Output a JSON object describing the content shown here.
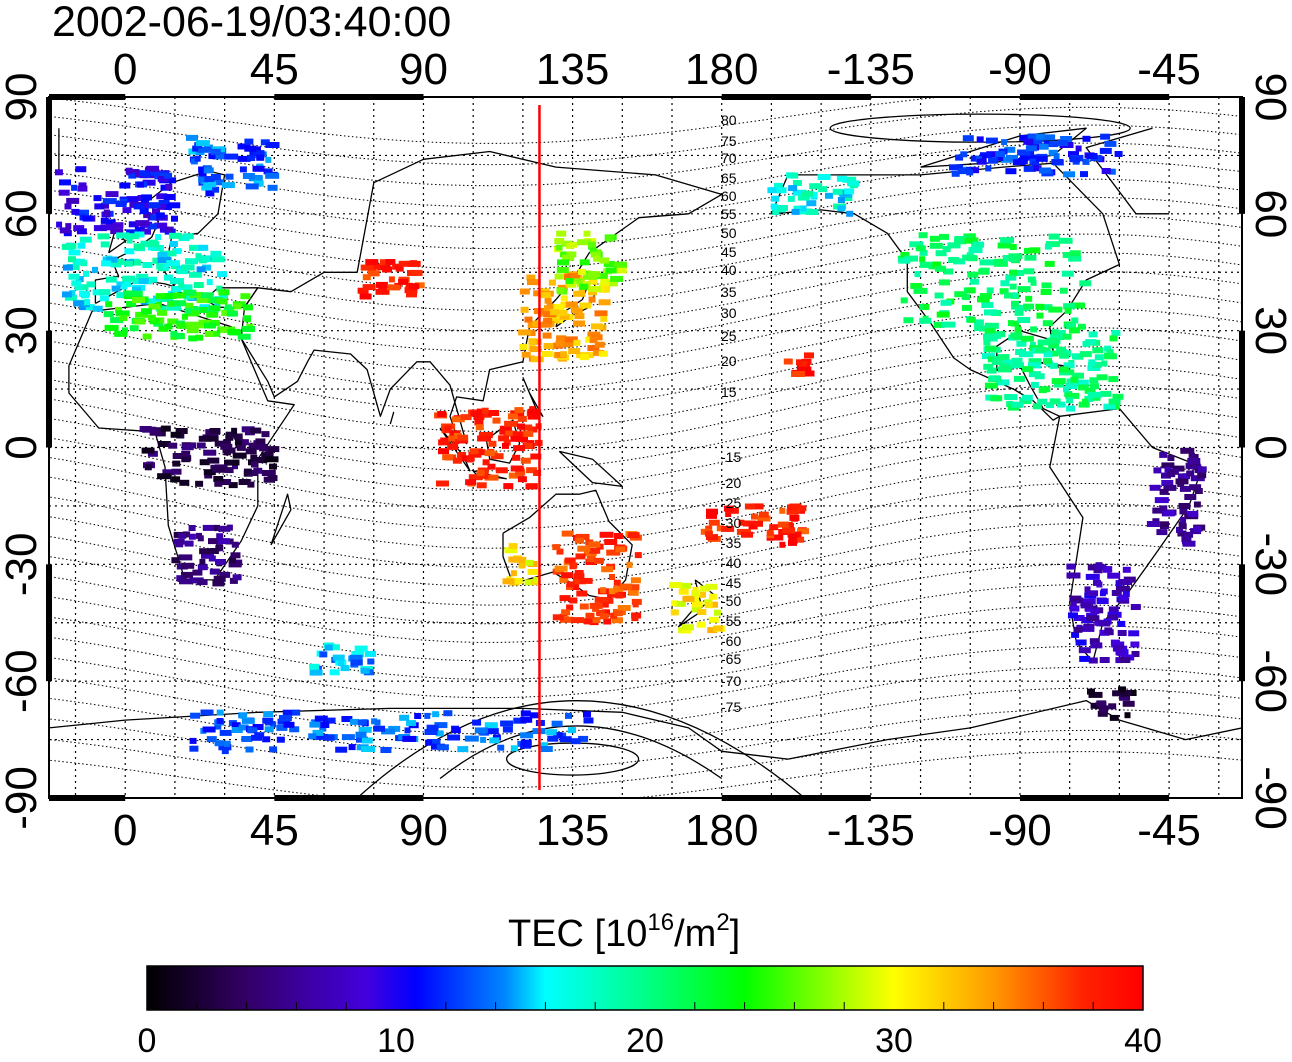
{
  "timestamp": "2002-06-19/03:40:00",
  "axes": {
    "lon_ticks": [
      "0",
      "45",
      "90",
      "135",
      "180",
      "-135",
      "-90",
      "-45"
    ],
    "lat_ticks": [
      "90",
      "60",
      "30",
      "0",
      "-30",
      "-60",
      "-90"
    ]
  },
  "contour_labels": [
    "80",
    "75",
    "70",
    "65",
    "60",
    "55",
    "50",
    "45",
    "40",
    "35",
    "30",
    "25",
    "20",
    "15",
    "-15",
    "-20",
    "-25",
    "-30",
    "-35",
    "-40",
    "-45",
    "-50",
    "-55",
    "-60",
    "-65",
    "-70",
    "-75"
  ],
  "marker": {
    "longitude": 125,
    "color": "#ff0000"
  },
  "colorbar": {
    "title_prefix": "TEC  [10",
    "title_exp1": "16",
    "title_mid": "/m",
    "title_exp2": "2",
    "title_suffix": "]",
    "min": 0,
    "max": 40,
    "tick_labels": [
      "0",
      "10",
      "20",
      "30",
      "40"
    ]
  },
  "tec_clusters": [
    {
      "region": "Europe North",
      "lon": [
        -20,
        15
      ],
      "lat": [
        55,
        72
      ],
      "tec": 10
    },
    {
      "region": "Europe Central",
      "lon": [
        -18,
        30
      ],
      "lat": [
        35,
        55
      ],
      "tec": 17
    },
    {
      "region": "Europe South",
      "lon": [
        -5,
        38
      ],
      "lat": [
        28,
        40
      ],
      "tec": 24
    },
    {
      "region": "Scandinavia",
      "lon": [
        20,
        45
      ],
      "lat": [
        65,
        80
      ],
      "tec": 13
    },
    {
      "region": "Central Asia",
      "lon": [
        70,
        90
      ],
      "lat": [
        38,
        48
      ],
      "tec": 38
    },
    {
      "region": "East Asia",
      "lon": [
        120,
        145
      ],
      "lat": [
        22,
        45
      ],
      "tec": 33
    },
    {
      "region": "Manchuria",
      "lon": [
        130,
        150
      ],
      "lat": [
        40,
        55
      ],
      "tec": 27
    },
    {
      "region": "Southeast Asia",
      "lon": [
        95,
        125
      ],
      "lat": [
        -10,
        10
      ],
      "tec": 38
    },
    {
      "region": "Australia",
      "lon": [
        130,
        155
      ],
      "lat": [
        -45,
        -22
      ],
      "tec": 37
    },
    {
      "region": "Australia West",
      "lon": [
        115,
        125
      ],
      "lat": [
        -35,
        -25
      ],
      "tec": 31
    },
    {
      "region": "New Zealand",
      "lon": [
        165,
        180
      ],
      "lat": [
        -47,
        -35
      ],
      "tec": 31
    },
    {
      "region": "Pacific Islands",
      "lon": [
        175,
        205
      ],
      "lat": [
        -25,
        -15
      ],
      "tec": 38
    },
    {
      "region": "Hawaii",
      "lon": [
        -160,
        -153
      ],
      "lat": [
        18,
        24
      ],
      "tec": 39
    },
    {
      "region": "North America",
      "lon": [
        -125,
        -70
      ],
      "lat": [
        30,
        55
      ],
      "tec": 21
    },
    {
      "region": "Caribbean",
      "lon": [
        -100,
        -60
      ],
      "lat": [
        10,
        30
      ],
      "tec": 20
    },
    {
      "region": "Canada Arctic",
      "lon": [
        -110,
        -60
      ],
      "lat": [
        70,
        80
      ],
      "tec": 12
    },
    {
      "region": "Alaska",
      "lon": [
        -165,
        -140
      ],
      "lat": [
        60,
        70
      ],
      "tec": 17
    },
    {
      "region": "Africa Central",
      "lon": [
        5,
        45
      ],
      "lat": [
        -10,
        5
      ],
      "tec": 3
    },
    {
      "region": "Africa South",
      "lon": [
        15,
        35
      ],
      "lat": [
        -35,
        -20
      ],
      "tec": 5
    },
    {
      "region": "South America East",
      "lon": [
        -50,
        -35
      ],
      "lat": [
        -25,
        0
      ],
      "tec": 6
    },
    {
      "region": "South America South",
      "lon": [
        -75,
        -55
      ],
      "lat": [
        -55,
        -30
      ],
      "tec": 8
    },
    {
      "region": "Tierra del Fuego",
      "lon": [
        -70,
        -55
      ],
      "lat": [
        -70,
        -62
      ],
      "tec": 3
    },
    {
      "region": "Antarctica",
      "lon": [
        20,
        140
      ],
      "lat": [
        -78,
        -68
      ],
      "tec": 13
    },
    {
      "region": "Southern Ocean",
      "lon": [
        55,
        75
      ],
      "lat": [
        -58,
        -50
      ],
      "tec": 15
    }
  ]
}
